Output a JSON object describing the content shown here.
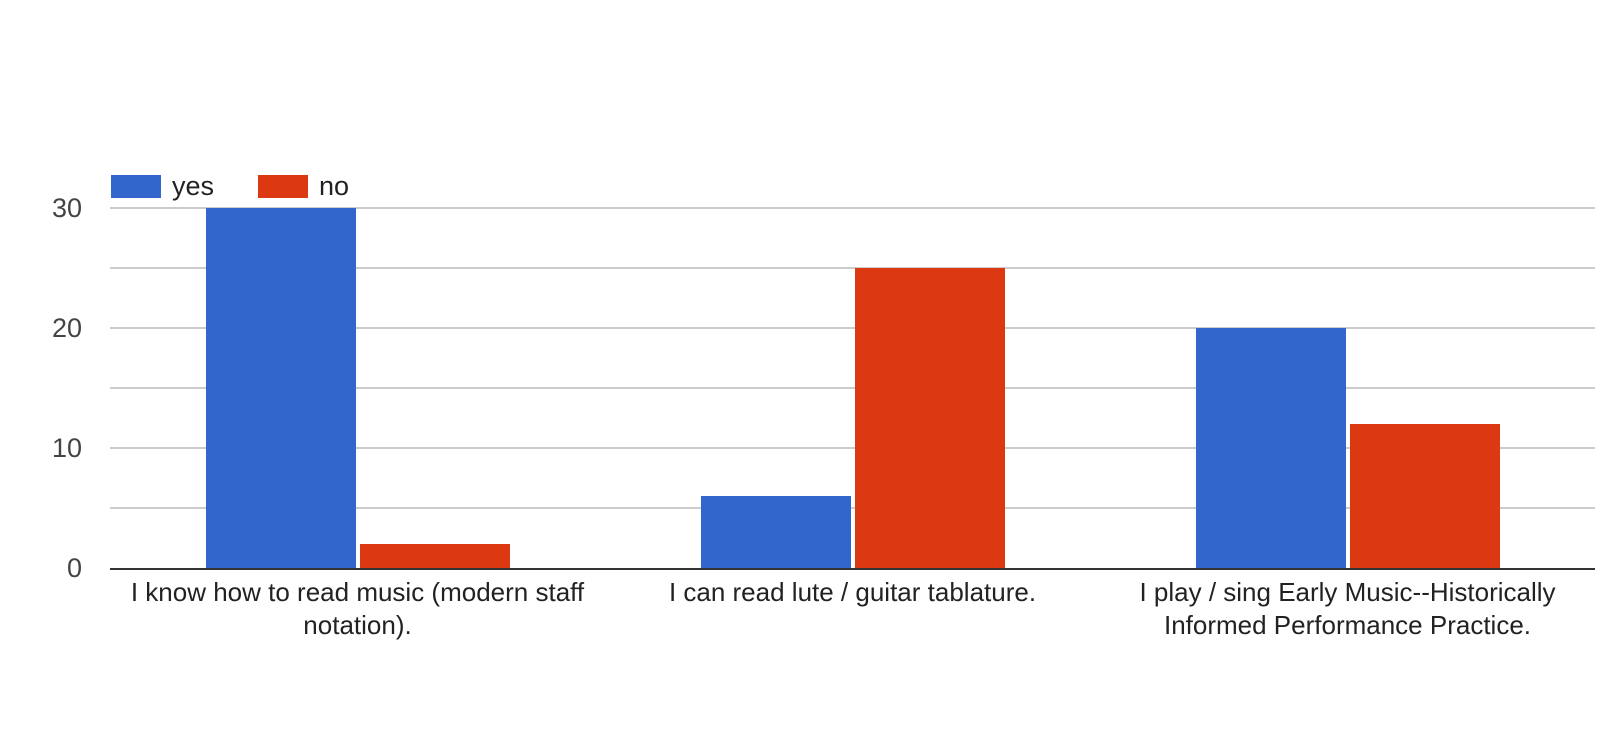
{
  "chart_data": {
    "type": "bar",
    "title": "",
    "categories": [
      "I know how to read music (modern staff notation).",
      "I can read lute / guitar tablature.",
      "I play / sing Early Music--Historically Informed Performance Practice."
    ],
    "category_lines": [
      [
        "I know how to read music (modern staff",
        "notation)."
      ],
      [
        "I can read lute / guitar tablature."
      ],
      [
        "I play / sing Early Music--Historically",
        "Informed Performance Practice."
      ]
    ],
    "series": [
      {
        "name": "yes",
        "color": "#3366cc",
        "values": [
          30,
          6,
          20
        ]
      },
      {
        "name": "no",
        "color": "#dc3912",
        "values": [
          2,
          25,
          12
        ]
      }
    ],
    "ylim": [
      0,
      30
    ],
    "grid_step": 5,
    "yticks": [
      0,
      10,
      20,
      30
    ],
    "legend_position": "top-left",
    "grid": true,
    "colors": {
      "gridline": "#cccccc",
      "baseline": "#333333",
      "ytick_text": "#444444",
      "xlabel_text": "#222222",
      "background": "#ffffff"
    }
  }
}
